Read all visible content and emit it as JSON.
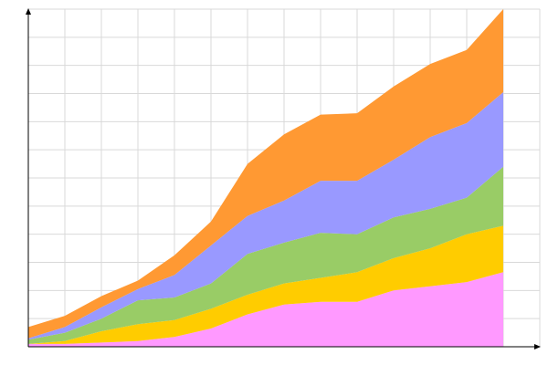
{
  "chart_data": {
    "type": "area",
    "stacked": true,
    "title": "",
    "xlabel": "",
    "ylabel": "",
    "grid": true,
    "legend": "none",
    "x": [
      0,
      1,
      2,
      3,
      4,
      5,
      6,
      7,
      8,
      9,
      10,
      11,
      12,
      13
    ],
    "xlim": [
      0,
      14
    ],
    "ylim": [
      0,
      12
    ],
    "series": [
      {
        "color": "#ff99ff",
        "values": [
          0.1,
          0.1,
          0.15,
          0.2,
          0.35,
          0.65,
          1.15,
          1.5,
          1.6,
          1.6,
          2.0,
          2.15,
          2.3,
          2.65
        ]
      },
      {
        "color": "#ffcc00",
        "values": [
          0.0,
          0.1,
          0.4,
          0.6,
          0.6,
          0.7,
          0.7,
          0.75,
          0.85,
          1.05,
          1.15,
          1.35,
          1.7,
          1.65
        ]
      },
      {
        "color": "#99cc66",
        "values": [
          0.15,
          0.3,
          0.45,
          0.85,
          0.8,
          0.9,
          1.45,
          1.45,
          1.6,
          1.35,
          1.45,
          1.4,
          1.3,
          2.1
        ]
      },
      {
        "color": "#9999ff",
        "values": [
          0.05,
          0.2,
          0.4,
          0.4,
          0.8,
          1.35,
          1.35,
          1.5,
          1.85,
          1.9,
          2.05,
          2.55,
          2.65,
          2.65
        ]
      },
      {
        "color": "#ff9933",
        "values": [
          0.4,
          0.4,
          0.4,
          0.3,
          0.7,
          0.85,
          1.85,
          2.35,
          2.35,
          2.4,
          2.6,
          2.6,
          2.6,
          2.95
        ]
      }
    ]
  }
}
